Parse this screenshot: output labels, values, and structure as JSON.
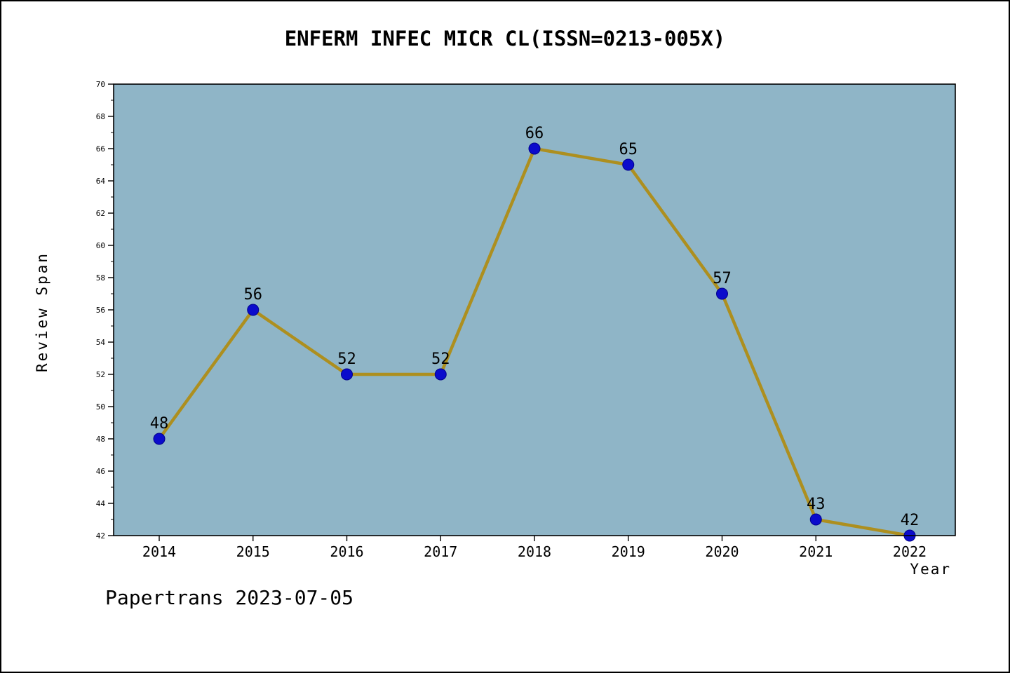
{
  "title": "ENFERM INFEC MICR CL(ISSN=0213-005X)",
  "footer": "Papertrans 2023-07-05",
  "chart_data": {
    "type": "line",
    "title": "ENFERM INFEC MICR CL(ISSN=0213-005X)",
    "categories": [
      "2014",
      "2015",
      "2016",
      "2017",
      "2018",
      "2019",
      "2020",
      "2021",
      "2022"
    ],
    "values": [
      48,
      56,
      52,
      52,
      66,
      65,
      57,
      43,
      42
    ],
    "point_labels": [
      "48",
      "56",
      "52",
      "52",
      "66",
      "65",
      "57",
      "43",
      "42"
    ],
    "xlabel": "Year",
    "ylabel": "Review Span",
    "ylim": [
      42,
      70
    ],
    "ytick_step": 2,
    "yticks": [
      42,
      44,
      46,
      48,
      50,
      52,
      54,
      56,
      58,
      60,
      62,
      64,
      66,
      68,
      70
    ],
    "grid": false,
    "legend": "none",
    "colors": {
      "plot_bg": "#8fb5c7",
      "line": "#ad8f1f",
      "marker_fill": "#0b0bcc",
      "marker_edge": "#00008b",
      "axis": "#000000",
      "text": "#000000"
    }
  }
}
